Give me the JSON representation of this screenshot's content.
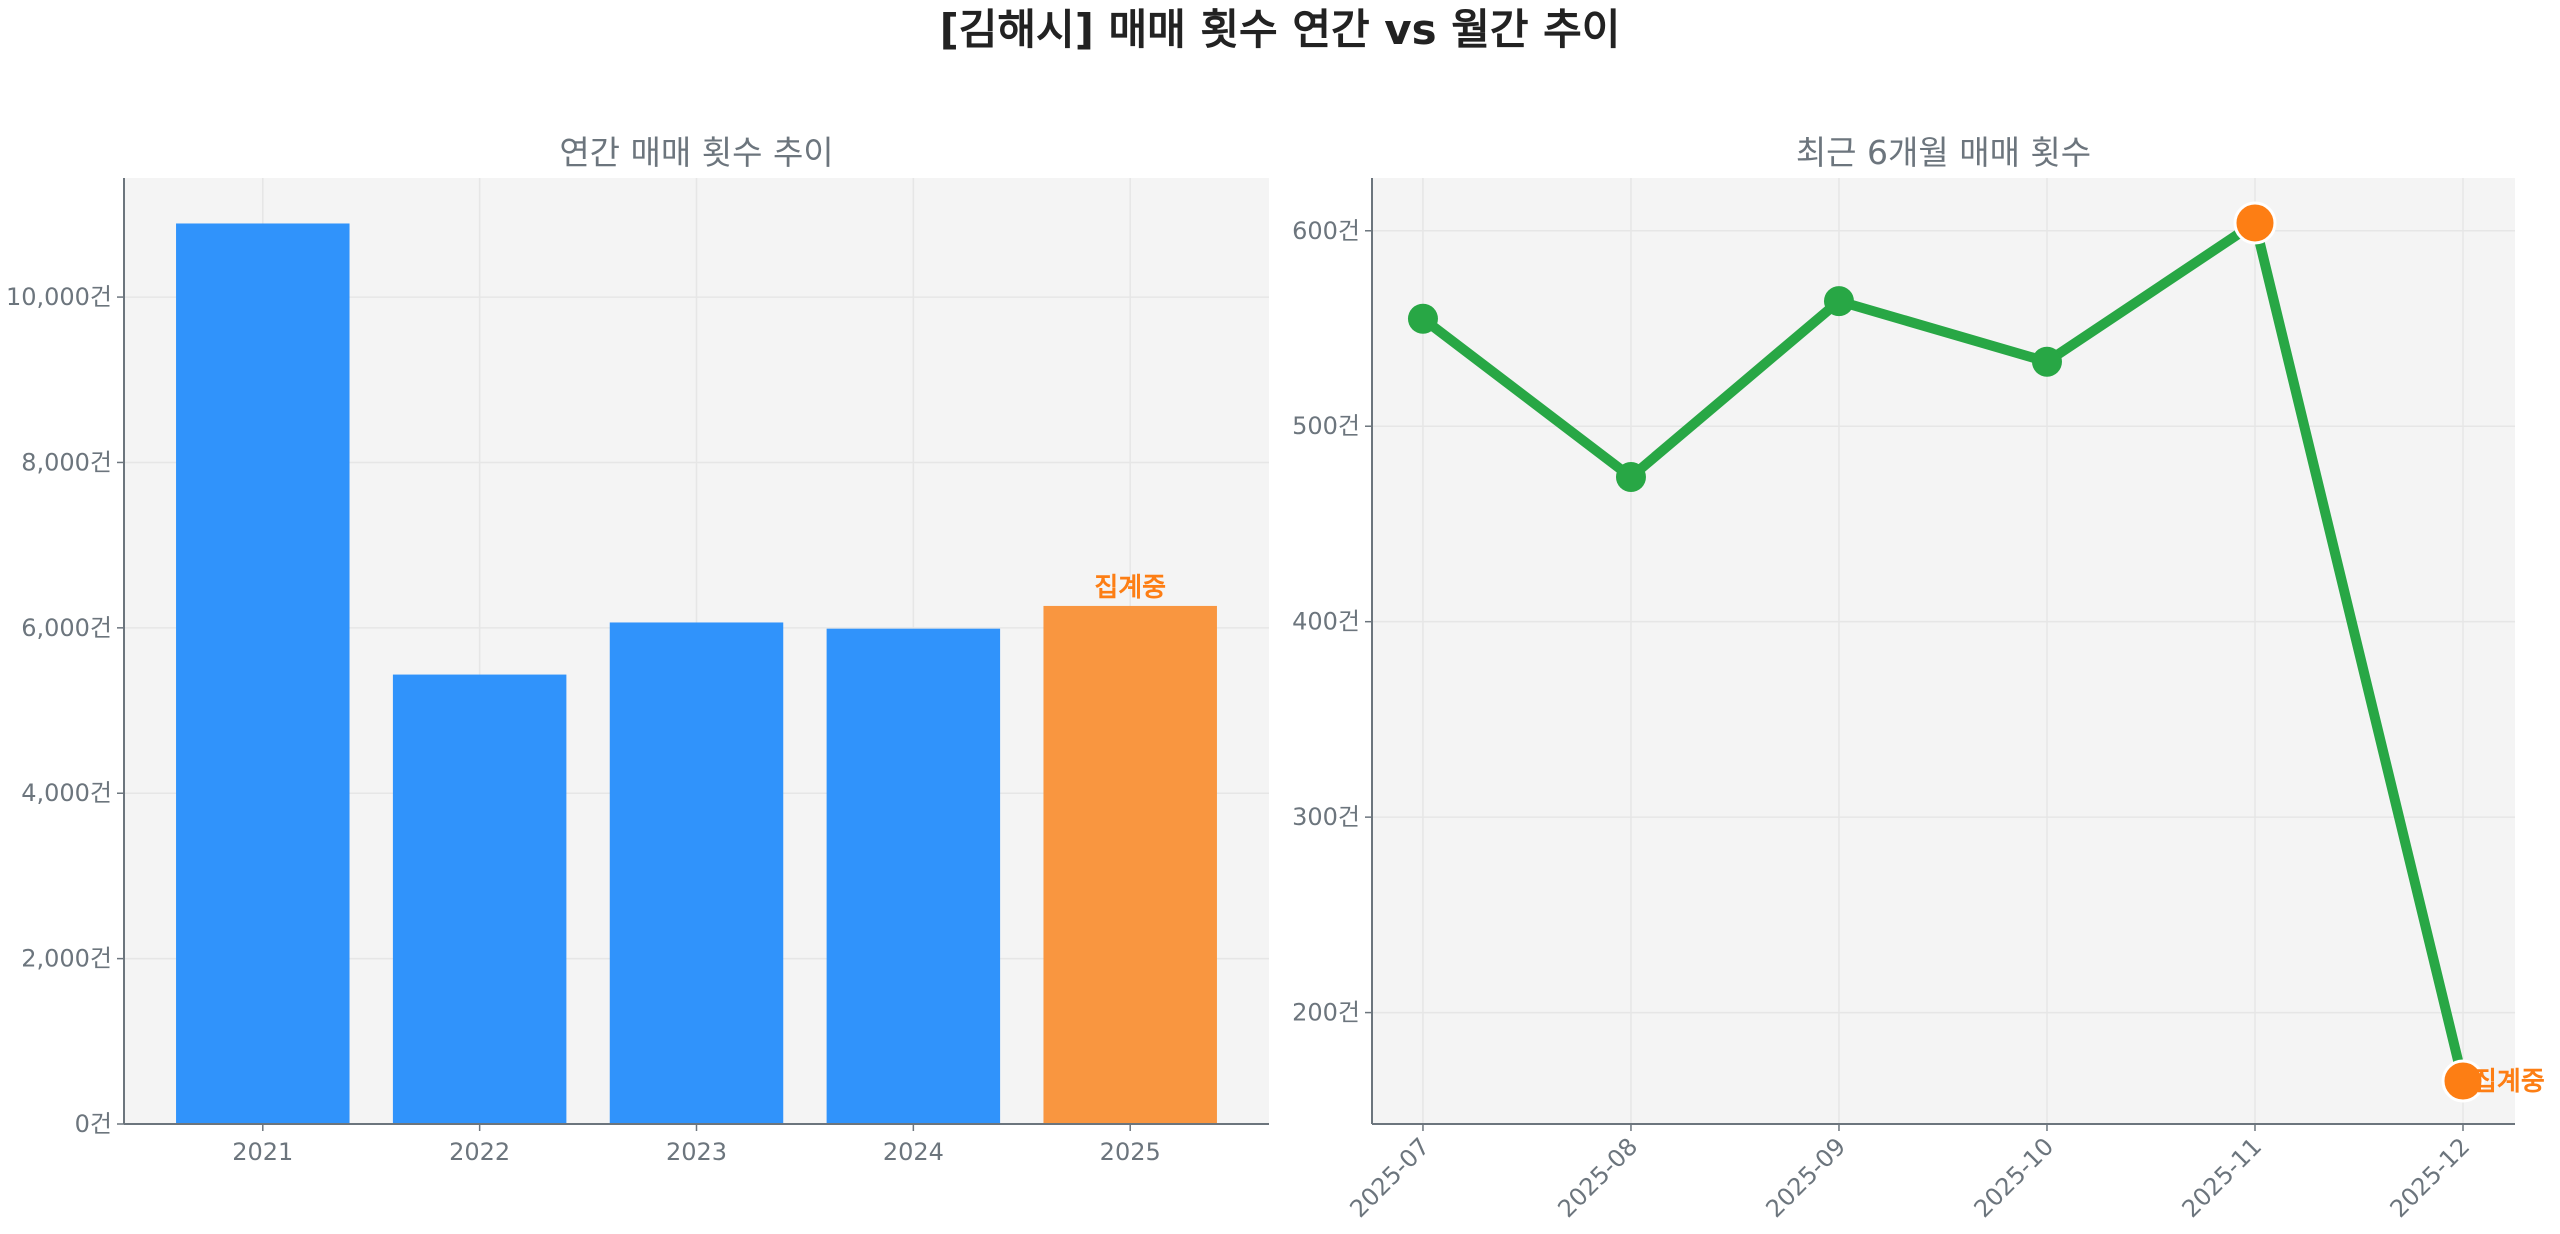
{
  "title": "[김해시] 매매 횟수 연간 vs 월간 추이",
  "chart_data": [
    {
      "type": "bar",
      "title": "연간 매매 횟수 추이",
      "categories": [
        "2021",
        "2022",
        "2023",
        "2024",
        "2025"
      ],
      "values": [
        10890,
        5435,
        6065,
        5990,
        6265
      ],
      "bar_colors": [
        "#3093FB",
        "#3093FB",
        "#3093FB",
        "#3093FB",
        "#F99640"
      ],
      "annotations": [
        {
          "category": "2025",
          "text": "집계중",
          "color": "#FD7E14"
        }
      ],
      "yticks": [
        0,
        2000,
        4000,
        6000,
        8000,
        10000
      ],
      "ytick_labels": [
        "0건",
        "2,000건",
        "4,000건",
        "6,000건",
        "8,000건",
        "10,000건"
      ],
      "ylim": [
        0,
        11440
      ],
      "grid": true
    },
    {
      "type": "line",
      "title": "최근 6개월 매매 횟수",
      "categories": [
        "2025-07",
        "2025-08",
        "2025-09",
        "2025-10",
        "2025-11",
        "2025-12"
      ],
      "values": [
        555,
        474,
        564,
        533,
        604,
        165
      ],
      "line_color": "#28A745",
      "highlight_points": [
        "2025-11",
        "2025-12"
      ],
      "highlight_color": "#FD7E14",
      "annotations": [
        {
          "category": "2025-12",
          "text": "집계중",
          "color": "#FD7E14"
        }
      ],
      "yticks": [
        200,
        300,
        400,
        500,
        600
      ],
      "ytick_labels": [
        "200건",
        "300건",
        "400건",
        "500건",
        "600건"
      ],
      "ylim": [
        143,
        627
      ],
      "grid": true
    }
  ]
}
